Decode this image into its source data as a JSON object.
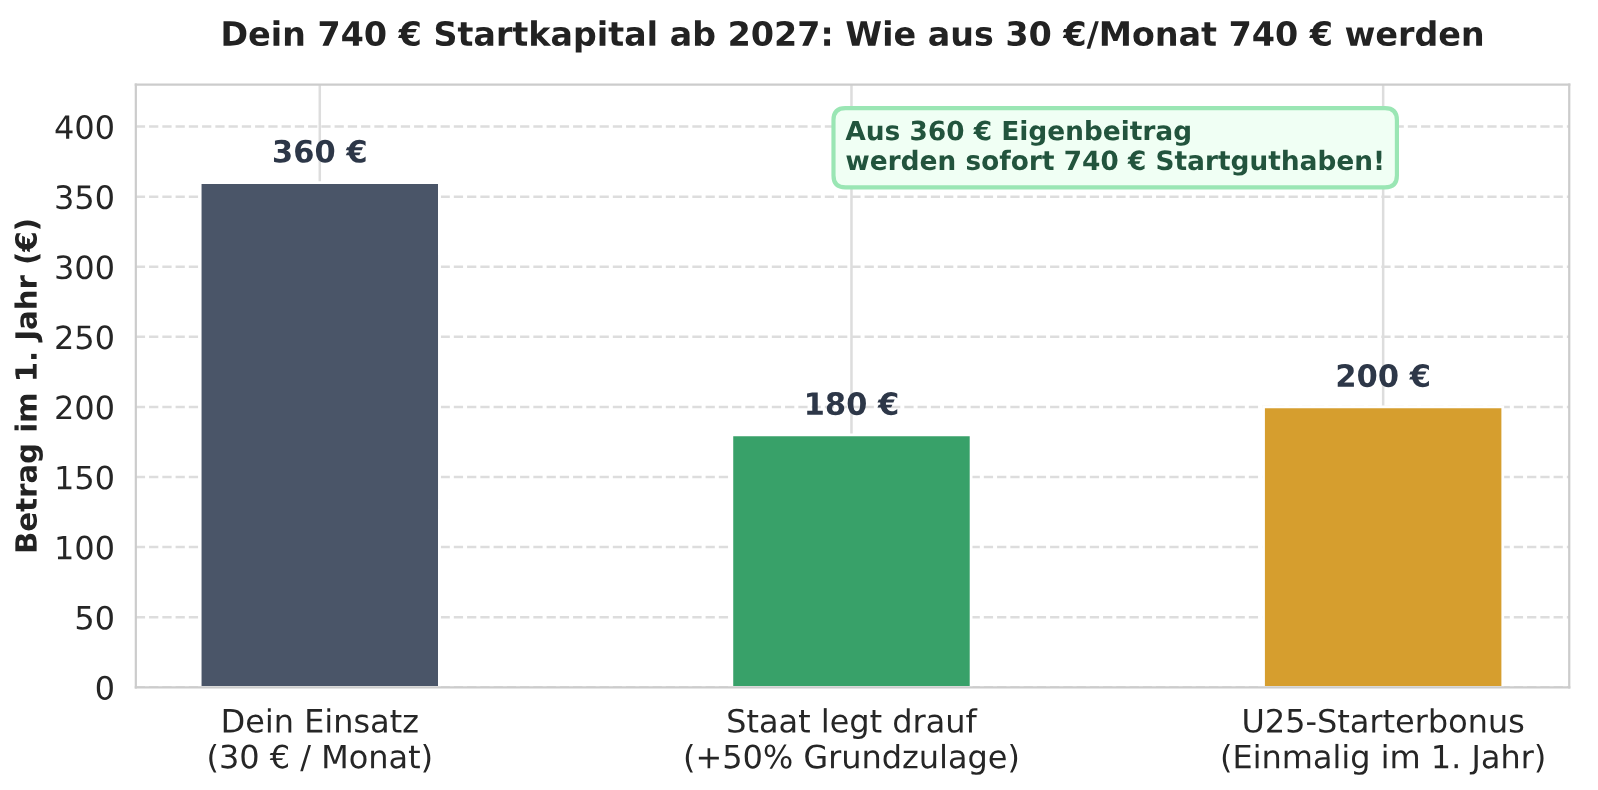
{
  "chart_data": {
    "type": "bar",
    "title": "Dein 740 € Startkapital ab 2027: Wie aus 30 €/Monat 740 € werden",
    "ylabel": "Betrag im 1. Jahr (€)",
    "categories": [
      "Dein Einsatz\n(30 € / Monat)",
      "Staat legt drauf\n(+50% Grundzulage)",
      "U25-Starterbonus\n(Einmalig im 1. Jahr)"
    ],
    "values": [
      360,
      180,
      200
    ],
    "colors": [
      "#4a5568",
      "#38a169",
      "#d69e2e"
    ],
    "value_labels": [
      "360 €",
      "180 €",
      "200 €"
    ],
    "ylim": [
      0,
      430
    ],
    "yticks": [
      0,
      50,
      100,
      150,
      200,
      250,
      300,
      350,
      400
    ],
    "grid": true,
    "legend": false,
    "annotations": [
      "Aus 360 € Eigenbeitrag\nwerden sofort 740 € Startguthaben!"
    ]
  }
}
